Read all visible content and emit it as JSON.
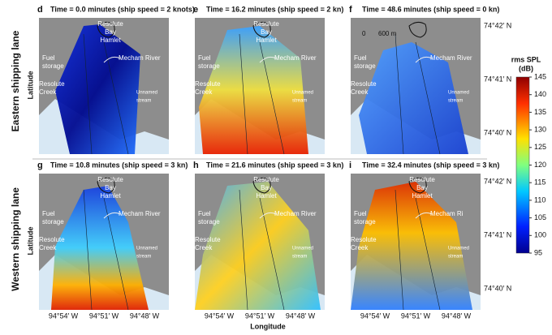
{
  "row_labels": [
    "Eastern shipping lane",
    "Western shipping lane"
  ],
  "axis_labels": {
    "y": "Latitude",
    "x": "Longitude"
  },
  "latitude_ticks": [
    "74°42′ N",
    "74°41′ N",
    "74°40′ N"
  ],
  "longitude_ticks": [
    "94°54′ W",
    "94°51′ W",
    "94°48′ W"
  ],
  "panels": [
    {
      "letter": "d",
      "title": "Time = 0.0 minutes (ship speed = 2 knots)",
      "hamlet": [
        "Resolute",
        "Bay",
        "Hamlet"
      ],
      "river": "Mecham River",
      "fuel": [
        "Fuel",
        "storage"
      ],
      "creek": [
        "Resolute",
        "Creek"
      ],
      "stream": [
        "Unnamed",
        "stream"
      ]
    },
    {
      "letter": "e",
      "title": "Time = 16.2 minutes (ship speed = 2 kn)",
      "hamlet": [
        "Resolute",
        "Bay",
        "Hamlet"
      ],
      "river": "Mecham River",
      "fuel": [
        "Fuel",
        "storage"
      ],
      "creek": [
        "Resolute",
        "Creek"
      ],
      "stream": [
        "Unnamed",
        "stream"
      ]
    },
    {
      "letter": "f",
      "title": "Time = 48.6 minutes (ship speed = 0 kn)",
      "scale": [
        "0",
        "600 m"
      ],
      "river": "Mecham River",
      "fuel": [
        "Fuel",
        "storage"
      ],
      "creek": [
        "Resolute",
        "Creek"
      ],
      "stream": [
        "Unnamed",
        "stream"
      ]
    },
    {
      "letter": "g",
      "title": "Time = 10.8 minutes (ship speed = 3 kn)",
      "hamlet": [
        "Resolute",
        "Bay",
        "Hamlet"
      ],
      "river": "Mecham River",
      "fuel": [
        "Fuel",
        "storage"
      ],
      "creek": [
        "Resolute",
        "Creek"
      ],
      "stream": [
        "Unnamed",
        "stream"
      ]
    },
    {
      "letter": "h",
      "title": "Time = 21.6 minutes (ship speed = 3 kn)",
      "hamlet": [
        "Resolute",
        "Bay",
        "Hamlet"
      ],
      "river": "Mecham River",
      "fuel": [
        "Fuel",
        "storage"
      ],
      "creek": [
        "Resolute",
        "Creek"
      ],
      "stream": [
        "Unnamed",
        "stream"
      ]
    },
    {
      "letter": "i",
      "title": "Time = 32.4 minutes (ship speed = 3 kn)",
      "hamlet": [
        "Resolute",
        "Bay",
        "Hamlet"
      ],
      "river": "Mecham Ri",
      "fuel": [
        "Fuel",
        "storage"
      ],
      "creek": [
        "Resolute",
        "Creek"
      ],
      "stream": [
        "Unnamed",
        "stream"
      ]
    }
  ],
  "colorbar": {
    "title": [
      "rms SPL",
      "(dB)"
    ],
    "lim": [
      95,
      145
    ],
    "ticks": [
      95,
      100,
      105,
      110,
      115,
      120,
      125,
      130,
      135,
      140,
      145
    ]
  }
}
